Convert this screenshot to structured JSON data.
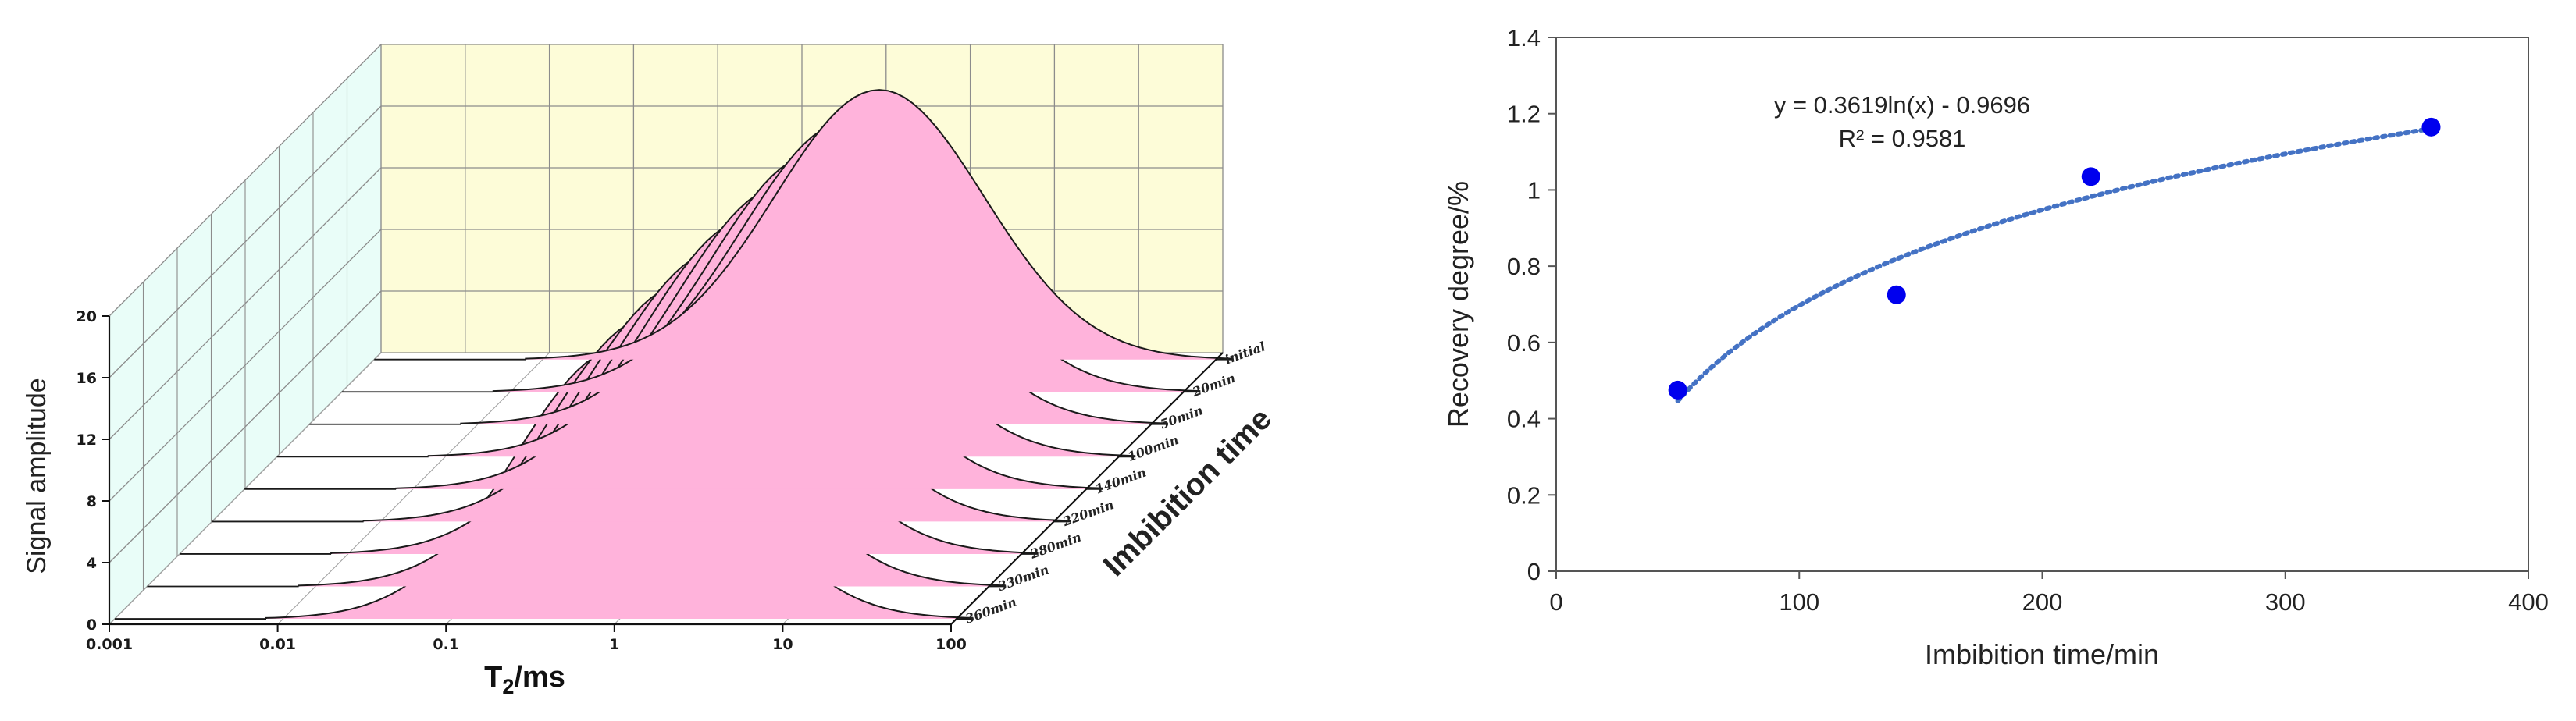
{
  "chart_data": [
    {
      "type": "area",
      "style": "3d-waterfall",
      "title": "",
      "xlabel_main": "T",
      "xlabel_sub": "2",
      "xlabel_unit": "/ms",
      "ylabel": "Imbibition time",
      "zlabel": "Signal amplitude",
      "x_ticks": [
        "0.001",
        "0.01",
        "0.1",
        "1",
        "10",
        "100"
      ],
      "x_scale": "log",
      "xlim": [
        0.001,
        100
      ],
      "z_ticks": [
        "0",
        "4",
        "8",
        "12",
        "16",
        "20"
      ],
      "zlim": [
        0,
        20
      ],
      "fill_color": "#ffb3db",
      "back_wall_color": "#fdfcd8",
      "side_wall_color": "#e9fdf8",
      "series": [
        {
          "name": "initial",
          "peak_T2": 1.0,
          "peak_amplitude": 17.5
        },
        {
          "name": "20min",
          "peak_T2": 1.0,
          "peak_amplitude": 17.5
        },
        {
          "name": "50min",
          "peak_T2": 1.0,
          "peak_amplitude": 17.5
        },
        {
          "name": "100min",
          "peak_T2": 1.0,
          "peak_amplitude": 17.5
        },
        {
          "name": "140min",
          "peak_T2": 1.0,
          "peak_amplitude": 17.5
        },
        {
          "name": "220min",
          "peak_T2": 1.0,
          "peak_amplitude": 17.5
        },
        {
          "name": "280min",
          "peak_T2": 1.0,
          "peak_amplitude": 17.5
        },
        {
          "name": "330min",
          "peak_T2": 1.0,
          "peak_amplitude": 17.5
        },
        {
          "name": "360min",
          "peak_T2": 1.0,
          "peak_amplitude": 17.5
        }
      ]
    },
    {
      "type": "scatter",
      "title": "",
      "xlabel": "Imbibition time/min",
      "ylabel": "Recovery degree/%",
      "xlim": [
        0,
        400
      ],
      "ylim": [
        0,
        1.4
      ],
      "x_ticks": [
        "0",
        "100",
        "200",
        "300",
        "400"
      ],
      "y_ticks": [
        "0",
        "0.2",
        "0.4",
        "0.6",
        "0.8",
        "1",
        "1.2",
        "1.4"
      ],
      "points": [
        {
          "x": 50,
          "y": 0.475
        },
        {
          "x": 140,
          "y": 0.725
        },
        {
          "x": 220,
          "y": 1.035
        },
        {
          "x": 360,
          "y": 1.165
        }
      ],
      "point_color": "#0000ee",
      "trendline": {
        "a": 0.3619,
        "b": -0.9696,
        "x_from": 50,
        "x_to": 360,
        "color": "#4472c4"
      },
      "equation_text": "y = 0.3619ln(x) - 0.9696",
      "r2_text": "R² = 0.9581"
    }
  ]
}
